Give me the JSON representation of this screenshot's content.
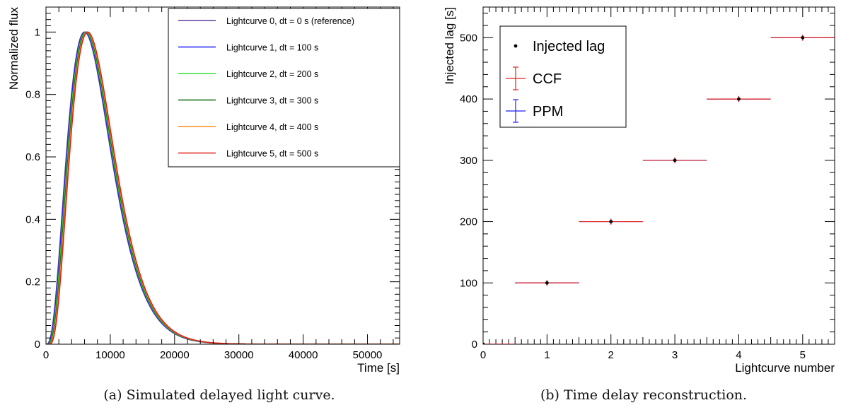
{
  "captions": {
    "a": "(a) Simulated delayed light curve.",
    "b": "(b) Time delay reconstruction."
  },
  "chart_data": [
    {
      "type": "line",
      "title": "",
      "xlabel": "Time [s]",
      "ylabel": "Normalized flux",
      "xlim": [
        0,
        55000
      ],
      "ylim": [
        0,
        1.08
      ],
      "xticks": [
        0,
        10000,
        20000,
        30000,
        40000,
        50000
      ],
      "yticks": [
        0,
        0.2,
        0.4,
        0.6,
        0.8,
        1
      ],
      "legend_position": "top-right",
      "curve_model": {
        "shape": "gamma-like pulse",
        "peak_time": 6000,
        "peak_value": 1
      },
      "series": [
        {
          "name": "Lightcurve 0, dt = 0 s (reference)",
          "color": "#5b3f9c",
          "delay": 0
        },
        {
          "name": "Lightcurve 1, dt = 100 s",
          "color": "#1f1fff",
          "delay": 100
        },
        {
          "name": "Lightcurve 2, dt = 200 s",
          "color": "#33dd33",
          "delay": 200
        },
        {
          "name": "Lightcurve 3, dt = 300 s",
          "color": "#0a6b0a",
          "delay": 300
        },
        {
          "name": "Lightcurve 4, dt = 400 s",
          "color": "#ff8c1a",
          "delay": 400
        },
        {
          "name": "Lightcurve 5, dt = 500 s",
          "color": "#e0201a",
          "delay": 500
        }
      ]
    },
    {
      "type": "scatter",
      "title": "",
      "xlabel": "Lightcurve number",
      "ylabel": "Injected lag [s]",
      "xlim": [
        0,
        5.5
      ],
      "ylim": [
        0,
        550
      ],
      "xticks": [
        0,
        1,
        2,
        3,
        4,
        5
      ],
      "yticks": [
        0,
        100,
        200,
        300,
        400,
        500
      ],
      "legend_position": "top-left",
      "x": [
        0,
        1,
        2,
        3,
        4,
        5
      ],
      "series": [
        {
          "name": "Injected lag",
          "color": "#000000",
          "values": [
            0,
            100,
            200,
            300,
            400,
            500
          ]
        },
        {
          "name": "CCF",
          "color": "#e0201a",
          "values": [
            0,
            100,
            200,
            300,
            400,
            500
          ],
          "x_error": 0.5,
          "y_error": 5
        },
        {
          "name": "PPM",
          "color": "#1f1fff",
          "values": [
            0,
            100,
            200,
            300,
            400,
            500
          ],
          "x_error": 0.5,
          "y_error": 4
        }
      ]
    }
  ]
}
